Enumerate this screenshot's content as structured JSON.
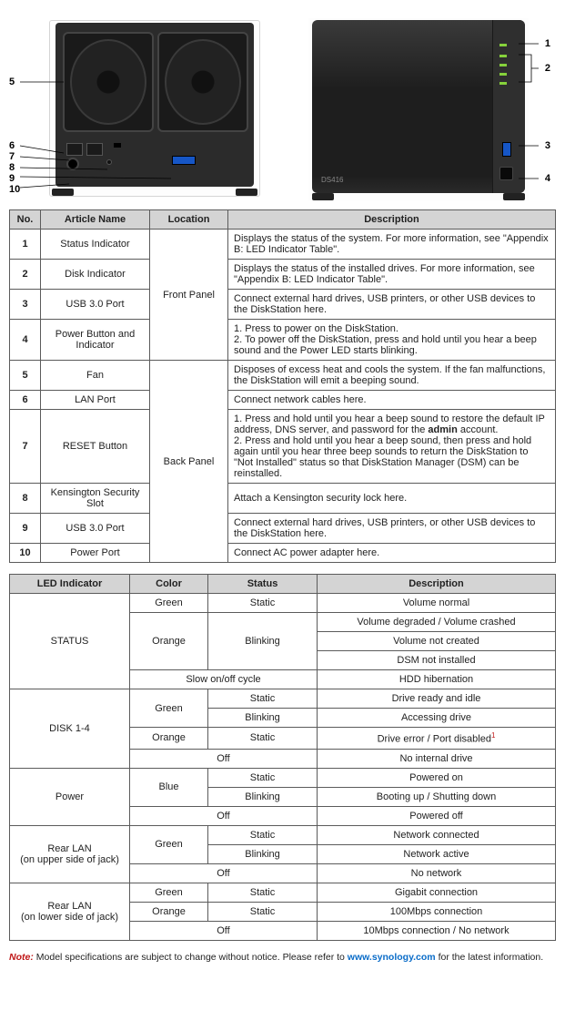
{
  "diagram": {
    "model_label": "DS416",
    "callouts_right": [
      "1",
      "2",
      "3",
      "4"
    ],
    "callouts_left": [
      "5",
      "6",
      "7",
      "8",
      "9",
      "10"
    ]
  },
  "table1": {
    "headers": [
      "No.",
      "Article Name",
      "Location",
      "Description"
    ],
    "location_front": "Front Panel",
    "location_back": "Back Panel",
    "rows": [
      {
        "no": "1",
        "name": "Status Indicator",
        "desc": "Displays the status of the system. For more information, see \"Appendix B: LED Indicator Table\"."
      },
      {
        "no": "2",
        "name": "Disk Indicator",
        "desc": "Displays the status of the installed drives. For more information, see \"Appendix B: LED Indicator Table\"."
      },
      {
        "no": "3",
        "name": "USB 3.0 Port",
        "desc": "Connect external hard drives, USB printers, or other USB devices to the DiskStation here."
      },
      {
        "no": "4",
        "name": "Power Button and Indicator",
        "desc": "1. Press to power on the DiskStation.\n2. To power off the DiskStation, press and hold until you hear a beep sound and the Power LED starts blinking."
      },
      {
        "no": "5",
        "name": "Fan",
        "desc": "Disposes of excess heat and cools the system. If the fan malfunctions, the DiskStation will emit a beeping sound."
      },
      {
        "no": "6",
        "name": "LAN Port",
        "desc": "Connect network cables here."
      },
      {
        "no": "7",
        "name": "RESET Button",
        "desc": "1. Press and hold until you hear a beep sound to restore the default IP address, DNS server, and password for the admin account.\n2. Press and hold until you hear a beep sound, then press and hold again until you hear three beep sounds to return the DiskStation to \"Not Installed\" status so that DiskStation Manager (DSM) can be reinstalled."
      },
      {
        "no": "8",
        "name": "Kensington Security Slot",
        "desc": "Attach a Kensington security lock here."
      },
      {
        "no": "9",
        "name": "USB 3.0 Port",
        "desc": "Connect external hard drives, USB printers, or other USB devices to the DiskStation here."
      },
      {
        "no": "10",
        "name": "Power Port",
        "desc": "Connect AC power adapter here."
      }
    ]
  },
  "table2": {
    "headers": [
      "LED Indicator",
      "Color",
      "Status",
      "Description"
    ],
    "groups": [
      {
        "indicator": "STATUS",
        "rows": [
          {
            "color": "Green",
            "status": "Static",
            "desc": "Volume normal",
            "colorspan": 1,
            "statspan": 1
          },
          {
            "color": "Orange",
            "status": "Blinking",
            "desc": "Volume degraded / Volume crashed",
            "colorspan": 3,
            "statspan": 3
          },
          {
            "desc": "Volume not created"
          },
          {
            "desc": "DSM not installed"
          },
          {
            "slow": "Slow on/off cycle",
            "desc": "HDD hibernation"
          }
        ]
      },
      {
        "indicator": "DISK 1-4",
        "rows": [
          {
            "color": "Green",
            "status": "Static",
            "desc": "Drive ready and idle",
            "colorspan": 2
          },
          {
            "status": "Blinking",
            "desc": "Accessing drive"
          },
          {
            "color": "Orange",
            "status": "Static",
            "desc": "Drive error / Port disabled",
            "sup": "1"
          },
          {
            "off": "Off",
            "desc": "No internal drive"
          }
        ]
      },
      {
        "indicator": "Power",
        "rows": [
          {
            "color": "Blue",
            "status": "Static",
            "desc": "Powered on",
            "colorspan": 2
          },
          {
            "status": "Blinking",
            "desc": "Booting up / Shutting down"
          },
          {
            "off": "Off",
            "desc": "Powered off"
          }
        ]
      },
      {
        "indicator": "Rear LAN\n(on upper side of jack)",
        "rows": [
          {
            "color": "Green",
            "status": "Static",
            "desc": "Network connected",
            "colorspan": 2
          },
          {
            "status": "Blinking",
            "desc": "Network active"
          },
          {
            "off": "Off",
            "desc": "No network"
          }
        ]
      },
      {
        "indicator": "Rear LAN\n(on lower side of jack)",
        "rows": [
          {
            "color": "Green",
            "status": "Static",
            "desc": "Gigabit connection"
          },
          {
            "color": "Orange",
            "status": "Static",
            "desc": "100Mbps connection"
          },
          {
            "off": "Off",
            "desc": "10Mbps connection / No network"
          }
        ]
      }
    ]
  },
  "note": {
    "label": "Note:",
    "text_a": "Model specifications are subject to change without notice. Please refer to ",
    "link": "www.synology.com",
    "text_b": " for the latest information."
  }
}
